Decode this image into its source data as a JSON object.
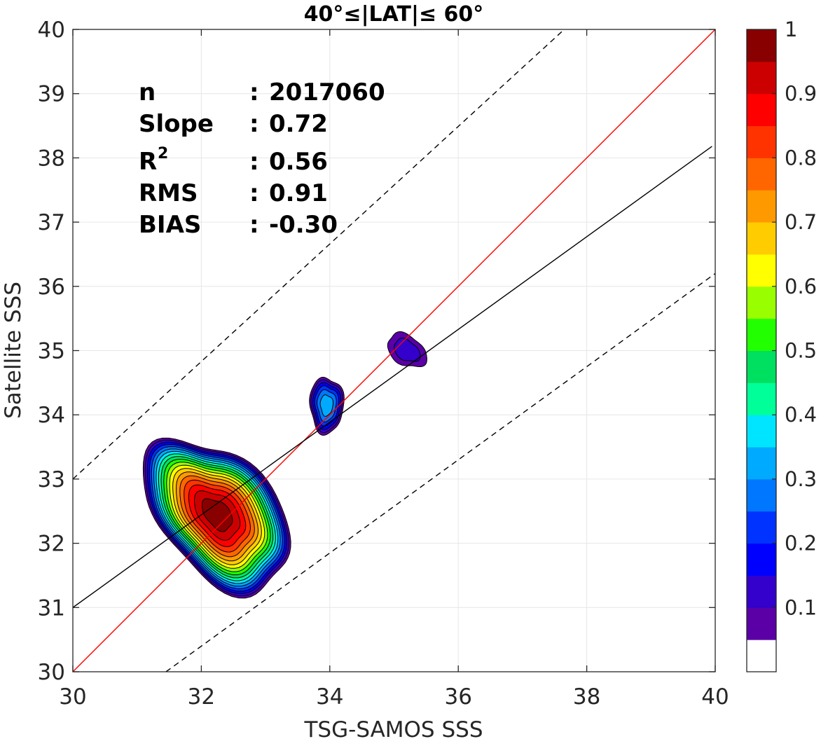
{
  "chart_data": {
    "type": "contour-density",
    "title": "40°≤|LAT|≤ 60°",
    "xlabel": "TSG-SAMOS SSS",
    "ylabel": "Satellite SSS",
    "xlim": [
      30,
      40
    ],
    "ylim": [
      30,
      40
    ],
    "xticks": [
      "30",
      "32",
      "34",
      "36",
      "38",
      "40"
    ],
    "yticks": [
      "30",
      "31",
      "32",
      "33",
      "34",
      "35",
      "36",
      "37",
      "38",
      "39",
      "40"
    ],
    "grid": true,
    "stats": [
      {
        "label": "n",
        "sep": ":",
        "value": "2017060"
      },
      {
        "label": "Slope",
        "sep": ":",
        "value": "0.72"
      },
      {
        "label": "R",
        "sup": "2",
        "sep": ":",
        "value": "0.56"
      },
      {
        "label": "RMS",
        "sep": ":",
        "value": "0.91"
      },
      {
        "label": "BIAS",
        "sep": ":",
        "value": "-0.30"
      }
    ],
    "lines": [
      {
        "role": "one-to-one",
        "color": "#ff0000",
        "dash": false,
        "points": [
          [
            30,
            30
          ],
          [
            40,
            40
          ]
        ]
      },
      {
        "role": "regression",
        "color": "#000000",
        "dash": false,
        "points": [
          [
            30,
            31.0
          ],
          [
            39.95,
            38.18
          ]
        ]
      },
      {
        "role": "upper-bound",
        "color": "#000000",
        "dash": true,
        "points": [
          [
            30,
            33.0
          ],
          [
            37.65,
            40.0
          ]
        ]
      },
      {
        "role": "lower-bound",
        "color": "#000000",
        "dash": true,
        "points": [
          [
            31.45,
            30.0
          ],
          [
            40,
            36.2
          ]
        ]
      }
    ],
    "density_levels": [
      0.05,
      0.1,
      0.15,
      0.2,
      0.25,
      0.3,
      0.35,
      0.4,
      0.45,
      0.5,
      0.55,
      0.6,
      0.65,
      0.7,
      0.75,
      0.8,
      0.85,
      0.9,
      0.95
    ],
    "density_peaks": [
      {
        "x": 32.25,
        "y": 32.45,
        "value": 0.95
      },
      {
        "x": 33.95,
        "y": 34.15,
        "value": 0.3
      },
      {
        "x": 35.2,
        "y": 35.0,
        "value": 0.1
      }
    ],
    "colorbar": {
      "min": 0,
      "max": 1,
      "ticks": [
        "0.1",
        "0.2",
        "0.3",
        "0.4",
        "0.5",
        "0.6",
        "0.7",
        "0.8",
        "0.9",
        "1"
      ],
      "colors": [
        "#ffffff",
        "#5a00a6",
        "#3300cc",
        "#0000ff",
        "#0033ff",
        "#0077ff",
        "#00aaff",
        "#00e5ff",
        "#00ff99",
        "#00e060",
        "#22ff00",
        "#99ff00",
        "#ffff00",
        "#ffcc00",
        "#ff9900",
        "#ff6600",
        "#ff3300",
        "#ff0000",
        "#cc0000",
        "#880000"
      ]
    }
  }
}
